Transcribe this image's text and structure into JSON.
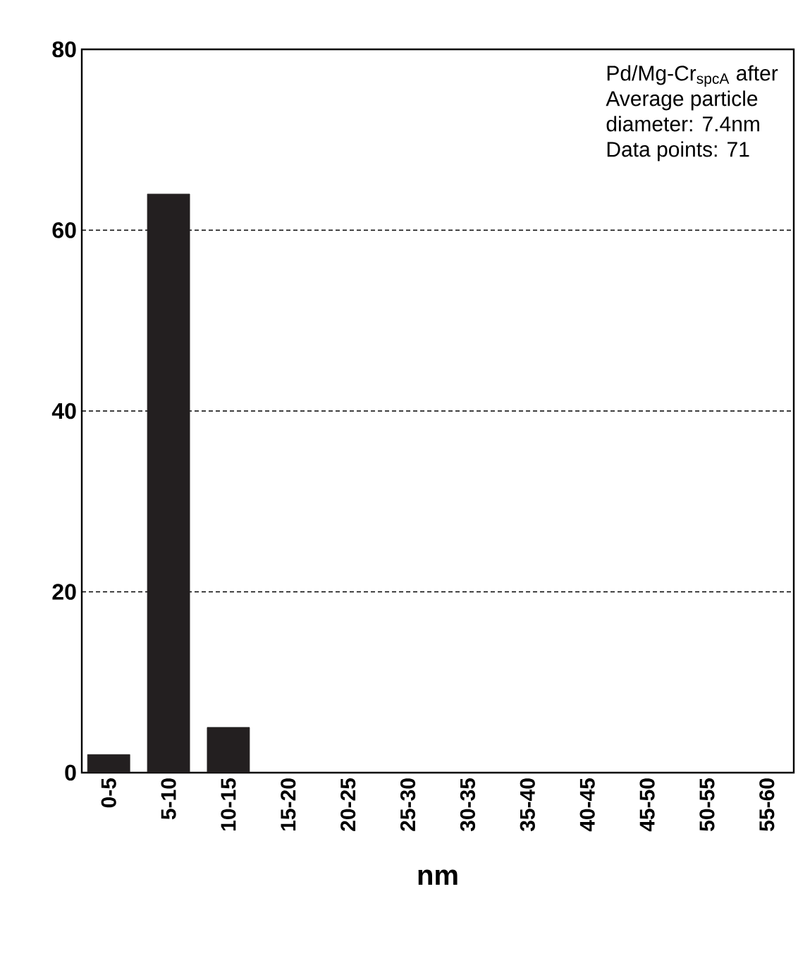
{
  "chart_data": {
    "type": "bar",
    "xlabel": "nm",
    "categories": [
      "0-5",
      "5-10",
      "10-15",
      "15-20",
      "20-25",
      "25-30",
      "30-35",
      "35-40",
      "40-45",
      "45-50",
      "50-55",
      "55-60"
    ],
    "values": [
      2,
      64,
      5,
      0,
      0,
      0,
      0,
      0,
      0,
      0,
      0,
      0
    ],
    "color": "#231f20",
    "ylim": [
      0,
      80
    ],
    "yticks": [
      0,
      20,
      40,
      60,
      80
    ],
    "grid": "y",
    "annotations": [
      "Pd/Mg-Cr$_{spcA}$ after",
      "Average particle",
      "diameter: 7.4nm",
      "Data points: 71"
    ]
  }
}
